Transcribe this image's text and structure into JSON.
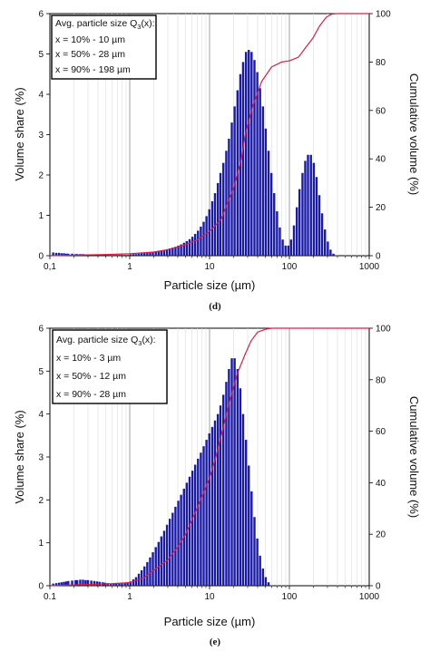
{
  "chart_data": [
    {
      "id": "d",
      "type": "bar",
      "panel_label": "(d)",
      "xscale": "log",
      "xlim": [
        0.1,
        1000
      ],
      "ylim": [
        0,
        6
      ],
      "y2lim": [
        0,
        100
      ],
      "xlabel": "Particle size (µm)",
      "ylabel": "Volume share (%)",
      "y2label": "Cumulative volume (%)",
      "x_ticks": [
        "0,1",
        "1",
        "10",
        "100",
        "1000"
      ],
      "y_ticks": [
        "0",
        "1",
        "2",
        "3",
        "4",
        "5",
        "6"
      ],
      "y2_ticks": [
        "0",
        "20",
        "40",
        "60",
        "80",
        "100"
      ],
      "grid": "vertical",
      "legend_position": "top-left",
      "legend_lines": [
        {
          "pre": "Avg. particle size Q",
          "sub": "3",
          "post": "(x):"
        },
        {
          "pre": "x = 10% - 10 µm",
          "sub": "",
          "post": ""
        },
        {
          "pre": "x = 50% - 28 µm",
          "sub": "",
          "post": ""
        },
        {
          "pre": "x = 90% - 198 µm",
          "sub": "",
          "post": ""
        }
      ],
      "bar_color": "#1a1aa8",
      "cumulative_color": "#d8204a",
      "bars": [
        {
          "x": 0.11,
          "y": 0.08
        },
        {
          "x": 0.12,
          "y": 0.07
        },
        {
          "x": 0.13,
          "y": 0.07
        },
        {
          "x": 0.14,
          "y": 0.06
        },
        {
          "x": 0.15,
          "y": 0.06
        },
        {
          "x": 0.16,
          "y": 0.05
        },
        {
          "x": 0.17,
          "y": 0.05
        },
        {
          "x": 0.19,
          "y": 0.05
        },
        {
          "x": 0.21,
          "y": 0.04
        },
        {
          "x": 0.22,
          "y": 0.04
        },
        {
          "x": 0.24,
          "y": 0.04
        },
        {
          "x": 0.26,
          "y": 0.04
        },
        {
          "x": 0.28,
          "y": 0.03
        },
        {
          "x": 0.3,
          "y": 0.03
        },
        {
          "x": 0.33,
          "y": 0.03
        },
        {
          "x": 0.36,
          "y": 0.03
        },
        {
          "x": 0.39,
          "y": 0.03
        },
        {
          "x": 0.42,
          "y": 0.03
        },
        {
          "x": 0.46,
          "y": 0.03
        },
        {
          "x": 0.49,
          "y": 0.03
        },
        {
          "x": 0.53,
          "y": 0.02
        },
        {
          "x": 0.58,
          "y": 0.02
        },
        {
          "x": 0.63,
          "y": 0.02
        },
        {
          "x": 0.68,
          "y": 0.02
        },
        {
          "x": 0.74,
          "y": 0.02
        },
        {
          "x": 0.8,
          "y": 0.02
        },
        {
          "x": 0.87,
          "y": 0.02
        },
        {
          "x": 0.94,
          "y": 0.02
        },
        {
          "x": 1.02,
          "y": 0.03
        },
        {
          "x": 1.11,
          "y": 0.04
        },
        {
          "x": 1.2,
          "y": 0.04
        },
        {
          "x": 1.3,
          "y": 0.05
        },
        {
          "x": 1.41,
          "y": 0.06
        },
        {
          "x": 1.53,
          "y": 0.07
        },
        {
          "x": 1.66,
          "y": 0.08
        },
        {
          "x": 1.8,
          "y": 0.09
        },
        {
          "x": 1.95,
          "y": 0.1
        },
        {
          "x": 2.12,
          "y": 0.11
        },
        {
          "x": 2.3,
          "y": 0.12
        },
        {
          "x": 2.49,
          "y": 0.13
        },
        {
          "x": 2.7,
          "y": 0.14
        },
        {
          "x": 2.93,
          "y": 0.16
        },
        {
          "x": 3.18,
          "y": 0.18
        },
        {
          "x": 3.45,
          "y": 0.2
        },
        {
          "x": 3.74,
          "y": 0.22
        },
        {
          "x": 4.06,
          "y": 0.25
        },
        {
          "x": 4.4,
          "y": 0.28
        },
        {
          "x": 4.78,
          "y": 0.32
        },
        {
          "x": 5.18,
          "y": 0.36
        },
        {
          "x": 5.62,
          "y": 0.41
        },
        {
          "x": 6.1,
          "y": 0.47
        },
        {
          "x": 6.61,
          "y": 0.54
        },
        {
          "x": 7.17,
          "y": 0.62
        },
        {
          "x": 7.78,
          "y": 0.72
        },
        {
          "x": 8.44,
          "y": 0.84
        },
        {
          "x": 9.15,
          "y": 0.98
        },
        {
          "x": 9.93,
          "y": 1.15
        },
        {
          "x": 10.8,
          "y": 1.35
        },
        {
          "x": 11.7,
          "y": 1.55
        },
        {
          "x": 12.7,
          "y": 1.8
        },
        {
          "x": 13.7,
          "y": 2.05
        },
        {
          "x": 14.9,
          "y": 2.3
        },
        {
          "x": 16.2,
          "y": 2.6
        },
        {
          "x": 17.5,
          "y": 2.9
        },
        {
          "x": 19.0,
          "y": 3.3
        },
        {
          "x": 20.6,
          "y": 3.7
        },
        {
          "x": 22.4,
          "y": 4.1
        },
        {
          "x": 24.3,
          "y": 4.5
        },
        {
          "x": 26.3,
          "y": 4.8
        },
        {
          "x": 28.6,
          "y": 5.05
        },
        {
          "x": 31.0,
          "y": 5.1
        },
        {
          "x": 33.6,
          "y": 5.05
        },
        {
          "x": 36.5,
          "y": 4.85
        },
        {
          "x": 39.6,
          "y": 4.55
        },
        {
          "x": 42.9,
          "y": 4.15
        },
        {
          "x": 46.6,
          "y": 3.7
        },
        {
          "x": 50.5,
          "y": 3.15
        },
        {
          "x": 54.8,
          "y": 2.6
        },
        {
          "x": 59.5,
          "y": 2.05
        },
        {
          "x": 64.5,
          "y": 1.55
        },
        {
          "x": 70.0,
          "y": 1.1
        },
        {
          "x": 75.9,
          "y": 0.7
        },
        {
          "x": 82.4,
          "y": 0.4
        },
        {
          "x": 89.4,
          "y": 0.25
        },
        {
          "x": 97.0,
          "y": 0.25
        },
        {
          "x": 105,
          "y": 0.4
        },
        {
          "x": 114,
          "y": 0.75
        },
        {
          "x": 124,
          "y": 1.2
        },
        {
          "x": 134,
          "y": 1.65
        },
        {
          "x": 146,
          "y": 2.05
        },
        {
          "x": 158,
          "y": 2.35
        },
        {
          "x": 171,
          "y": 2.5
        },
        {
          "x": 186,
          "y": 2.5
        },
        {
          "x": 202,
          "y": 2.3
        },
        {
          "x": 219,
          "y": 1.95
        },
        {
          "x": 237,
          "y": 1.5
        },
        {
          "x": 257,
          "y": 1.05
        },
        {
          "x": 279,
          "y": 0.65
        },
        {
          "x": 303,
          "y": 0.35
        },
        {
          "x": 328,
          "y": 0.15
        },
        {
          "x": 356,
          "y": 0.05
        }
      ],
      "cumulative": [
        {
          "x": 0.1,
          "y": 0
        },
        {
          "x": 0.5,
          "y": 0.5
        },
        {
          "x": 1,
          "y": 0.8
        },
        {
          "x": 2,
          "y": 1.5
        },
        {
          "x": 3,
          "y": 2.5
        },
        {
          "x": 5,
          "y": 4.5
        },
        {
          "x": 7,
          "y": 6.5
        },
        {
          "x": 10,
          "y": 10
        },
        {
          "x": 14,
          "y": 15
        },
        {
          "x": 20,
          "y": 28
        },
        {
          "x": 25,
          "y": 40
        },
        {
          "x": 28,
          "y": 50
        },
        {
          "x": 35,
          "y": 62
        },
        {
          "x": 45,
          "y": 72
        },
        {
          "x": 60,
          "y": 78
        },
        {
          "x": 80,
          "y": 80
        },
        {
          "x": 100,
          "y": 80.5
        },
        {
          "x": 130,
          "y": 82
        },
        {
          "x": 160,
          "y": 86
        },
        {
          "x": 198,
          "y": 90
        },
        {
          "x": 240,
          "y": 95
        },
        {
          "x": 290,
          "y": 98.5
        },
        {
          "x": 340,
          "y": 99.8
        },
        {
          "x": 400,
          "y": 100
        },
        {
          "x": 1000,
          "y": 100
        }
      ]
    },
    {
      "id": "e",
      "type": "bar",
      "panel_label": "(e)",
      "xscale": "log",
      "xlim": [
        0.1,
        1000
      ],
      "ylim": [
        0,
        6
      ],
      "y2lim": [
        0,
        100
      ],
      "xlabel": "Particle size (µm)",
      "ylabel": "Volume share (%)",
      "y2label": "Cumulative volume (%)",
      "x_ticks": [
        "0.1",
        "1",
        "10",
        "100",
        "1000"
      ],
      "y_ticks": [
        "0",
        "1",
        "2",
        "3",
        "4",
        "5",
        "6"
      ],
      "y2_ticks": [
        "0",
        "20",
        "40",
        "60",
        "80",
        "100"
      ],
      "grid": "vertical",
      "legend_position": "top-left",
      "legend_lines": [
        {
          "pre": "Avg. particle size Q",
          "sub": "3",
          "post": "(x):"
        },
        {
          "pre": "x = 10% - 3 µm",
          "sub": "",
          "post": ""
        },
        {
          "pre": "x = 50% - 12 µm",
          "sub": "",
          "post": ""
        },
        {
          "pre": "x = 90% - 28 µm",
          "sub": "",
          "post": ""
        }
      ],
      "bar_color": "#1a1aa8",
      "cumulative_color": "#d8204a",
      "bars": [
        {
          "x": 0.11,
          "y": 0.05
        },
        {
          "x": 0.12,
          "y": 0.06
        },
        {
          "x": 0.13,
          "y": 0.07
        },
        {
          "x": 0.14,
          "y": 0.08
        },
        {
          "x": 0.15,
          "y": 0.09
        },
        {
          "x": 0.16,
          "y": 0.1
        },
        {
          "x": 0.17,
          "y": 0.11
        },
        {
          "x": 0.19,
          "y": 0.12
        },
        {
          "x": 0.21,
          "y": 0.13
        },
        {
          "x": 0.22,
          "y": 0.13
        },
        {
          "x": 0.24,
          "y": 0.14
        },
        {
          "x": 0.26,
          "y": 0.14
        },
        {
          "x": 0.28,
          "y": 0.13
        },
        {
          "x": 0.3,
          "y": 0.13
        },
        {
          "x": 0.33,
          "y": 0.12
        },
        {
          "x": 0.36,
          "y": 0.11
        },
        {
          "x": 0.39,
          "y": 0.1
        },
        {
          "x": 0.42,
          "y": 0.09
        },
        {
          "x": 0.46,
          "y": 0.08
        },
        {
          "x": 0.49,
          "y": 0.07
        },
        {
          "x": 0.53,
          "y": 0.06
        },
        {
          "x": 0.58,
          "y": 0.05
        },
        {
          "x": 0.63,
          "y": 0.05
        },
        {
          "x": 0.68,
          "y": 0.05
        },
        {
          "x": 0.74,
          "y": 0.05
        },
        {
          "x": 0.8,
          "y": 0.06
        },
        {
          "x": 0.87,
          "y": 0.07
        },
        {
          "x": 0.94,
          "y": 0.08
        },
        {
          "x": 1.02,
          "y": 0.1
        },
        {
          "x": 1.11,
          "y": 0.15
        },
        {
          "x": 1.2,
          "y": 0.2
        },
        {
          "x": 1.3,
          "y": 0.28
        },
        {
          "x": 1.41,
          "y": 0.36
        },
        {
          "x": 1.53,
          "y": 0.45
        },
        {
          "x": 1.66,
          "y": 0.55
        },
        {
          "x": 1.8,
          "y": 0.66
        },
        {
          "x": 1.95,
          "y": 0.78
        },
        {
          "x": 2.12,
          "y": 0.9
        },
        {
          "x": 2.3,
          "y": 1.02
        },
        {
          "x": 2.49,
          "y": 1.15
        },
        {
          "x": 2.7,
          "y": 1.28
        },
        {
          "x": 2.93,
          "y": 1.42
        },
        {
          "x": 3.18,
          "y": 1.56
        },
        {
          "x": 3.45,
          "y": 1.7
        },
        {
          "x": 3.74,
          "y": 1.84
        },
        {
          "x": 4.06,
          "y": 1.98
        },
        {
          "x": 4.4,
          "y": 2.12
        },
        {
          "x": 4.78,
          "y": 2.26
        },
        {
          "x": 5.18,
          "y": 2.4
        },
        {
          "x": 5.62,
          "y": 2.54
        },
        {
          "x": 6.1,
          "y": 2.68
        },
        {
          "x": 6.61,
          "y": 2.82
        },
        {
          "x": 7.17,
          "y": 2.96
        },
        {
          "x": 7.78,
          "y": 3.1
        },
        {
          "x": 8.44,
          "y": 3.25
        },
        {
          "x": 9.15,
          "y": 3.4
        },
        {
          "x": 9.93,
          "y": 3.55
        },
        {
          "x": 10.8,
          "y": 3.7
        },
        {
          "x": 11.7,
          "y": 3.85
        },
        {
          "x": 12.7,
          "y": 4.0
        },
        {
          "x": 13.7,
          "y": 4.2
        },
        {
          "x": 14.9,
          "y": 4.45
        },
        {
          "x": 16.2,
          "y": 4.75
        },
        {
          "x": 17.5,
          "y": 5.05
        },
        {
          "x": 19.0,
          "y": 5.3
        },
        {
          "x": 20.6,
          "y": 5.3
        },
        {
          "x": 22.4,
          "y": 5.05
        },
        {
          "x": 24.3,
          "y": 4.6
        },
        {
          "x": 26.3,
          "y": 4.0
        },
        {
          "x": 28.6,
          "y": 3.4
        },
        {
          "x": 31.0,
          "y": 2.8
        },
        {
          "x": 33.6,
          "y": 2.2
        },
        {
          "x": 36.5,
          "y": 1.6
        },
        {
          "x": 39.6,
          "y": 1.1
        },
        {
          "x": 42.9,
          "y": 0.7
        },
        {
          "x": 46.6,
          "y": 0.4
        },
        {
          "x": 50.5,
          "y": 0.2
        },
        {
          "x": 54.8,
          "y": 0.08
        }
      ],
      "cumulative": [
        {
          "x": 0.1,
          "y": 0
        },
        {
          "x": 0.3,
          "y": 0.5
        },
        {
          "x": 0.6,
          "y": 0.8
        },
        {
          "x": 1,
          "y": 1.2
        },
        {
          "x": 1.5,
          "y": 3
        },
        {
          "x": 2,
          "y": 6
        },
        {
          "x": 3,
          "y": 10
        },
        {
          "x": 4,
          "y": 15
        },
        {
          "x": 5,
          "y": 20
        },
        {
          "x": 7,
          "y": 30
        },
        {
          "x": 10,
          "y": 42
        },
        {
          "x": 12,
          "y": 50
        },
        {
          "x": 15,
          "y": 62
        },
        {
          "x": 18,
          "y": 72
        },
        {
          "x": 22,
          "y": 82
        },
        {
          "x": 28,
          "y": 90
        },
        {
          "x": 33,
          "y": 95
        },
        {
          "x": 40,
          "y": 98.5
        },
        {
          "x": 50,
          "y": 99.6
        },
        {
          "x": 60,
          "y": 100
        },
        {
          "x": 1000,
          "y": 100
        }
      ]
    }
  ]
}
